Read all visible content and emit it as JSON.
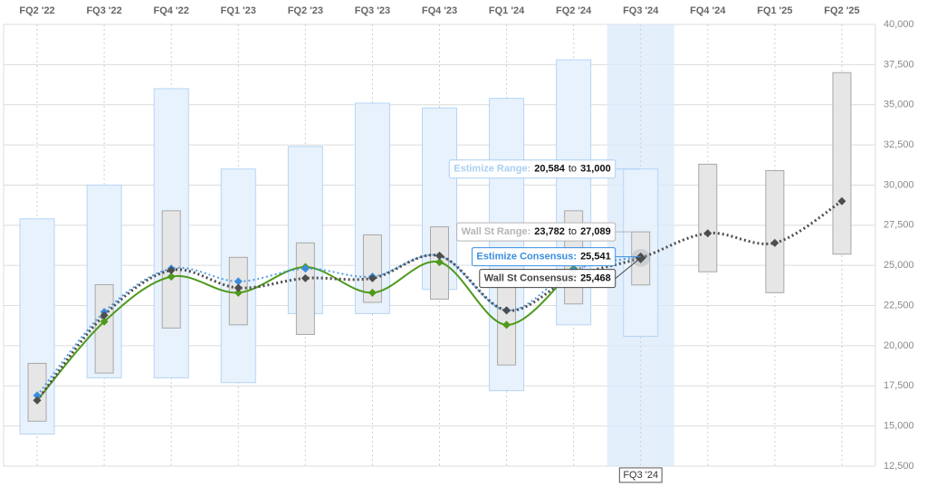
{
  "chart_data": {
    "type": "line",
    "categories": [
      "FQ2 '22",
      "FQ3 '22",
      "FQ4 '22",
      "FQ1 '23",
      "FQ2 '23",
      "FQ3 '23",
      "FQ4 '23",
      "FQ1 '24",
      "FQ2 '24",
      "FQ3 '24",
      "FQ4 '24",
      "FQ1 '25",
      "FQ2 '25"
    ],
    "ylim": [
      12500,
      40000
    ],
    "yticks": [
      {
        "value": 12500,
        "label": "12,500"
      },
      {
        "value": 15000,
        "label": "15,000"
      },
      {
        "value": 17500,
        "label": "17,500"
      },
      {
        "value": 20000,
        "label": "20,000"
      },
      {
        "value": 22500,
        "label": "22,500"
      },
      {
        "value": 25000,
        "label": "25,000"
      },
      {
        "value": 27500,
        "label": "27,500"
      },
      {
        "value": 30000,
        "label": "30,000"
      },
      {
        "value": 32500,
        "label": "32,500"
      },
      {
        "value": 35000,
        "label": "35,000"
      },
      {
        "value": 37500,
        "label": "37,500"
      },
      {
        "value": 40000,
        "label": "40,000"
      }
    ],
    "grid": true,
    "series": [
      {
        "style": "range",
        "color": "#b5d5f5",
        "fill": "#e8f2fd",
        "low": [
          14500,
          18000,
          18000,
          17700,
          22000,
          22000,
          23500,
          17200,
          21300,
          20584,
          null,
          null,
          null
        ],
        "high": [
          27900,
          30000,
          36000,
          31000,
          32400,
          35100,
          34800,
          35400,
          37800,
          31000,
          null,
          null,
          null
        ]
      },
      {
        "style": "range",
        "color": "#a8a8a8",
        "fill": "#e6e6e6",
        "low": [
          15300,
          18300,
          21100,
          21300,
          20700,
          22700,
          22900,
          18800,
          22600,
          23782,
          24600,
          23300,
          25700
        ],
        "high": [
          18900,
          23800,
          28400,
          25500,
          26400,
          26900,
          27400,
          24600,
          28400,
          27089,
          31300,
          30900,
          37000
        ]
      },
      {
        "style": "solid",
        "color": "#4e9a1c",
        "values": [
          16600,
          21500,
          24300,
          23300,
          24900,
          23300,
          25200,
          21300,
          24800,
          null,
          null,
          null,
          null
        ]
      },
      {
        "style": "dotted",
        "color": "#3a8ee0",
        "values": [
          16900,
          22100,
          24800,
          24000,
          24800,
          24300,
          25600,
          22200,
          24700,
          25541,
          null,
          null,
          null
        ]
      },
      {
        "style": "dotted",
        "color": "#4d4d4d",
        "values": [
          16600,
          21900,
          24700,
          23600,
          24200,
          24200,
          25600,
          22200,
          24300,
          25468,
          27000,
          26400,
          29000
        ]
      }
    ],
    "tooltip": {
      "x_label": "FQ3 '24",
      "rows": [
        {
          "label": "Estimize Range:",
          "color": "#a9cff2",
          "values": [
            20584,
            31000
          ],
          "value_labels": [
            "20,584",
            "31,000"
          ],
          "joiner": "to"
        },
        {
          "label": "Wall St Range:",
          "color": "#b5b5b5",
          "values": [
            23782,
            27089
          ],
          "value_labels": [
            "23,782",
            "27,089"
          ],
          "joiner": "to"
        },
        {
          "label": "Estimize Consensus:",
          "color": "#3a8ee0",
          "values": [
            25541
          ],
          "value_labels": [
            "25,541"
          ]
        },
        {
          "label": "Wall St Consensus:",
          "color": "#444444",
          "values": [
            25468
          ],
          "value_labels": [
            "25,468"
          ]
        }
      ]
    }
  }
}
